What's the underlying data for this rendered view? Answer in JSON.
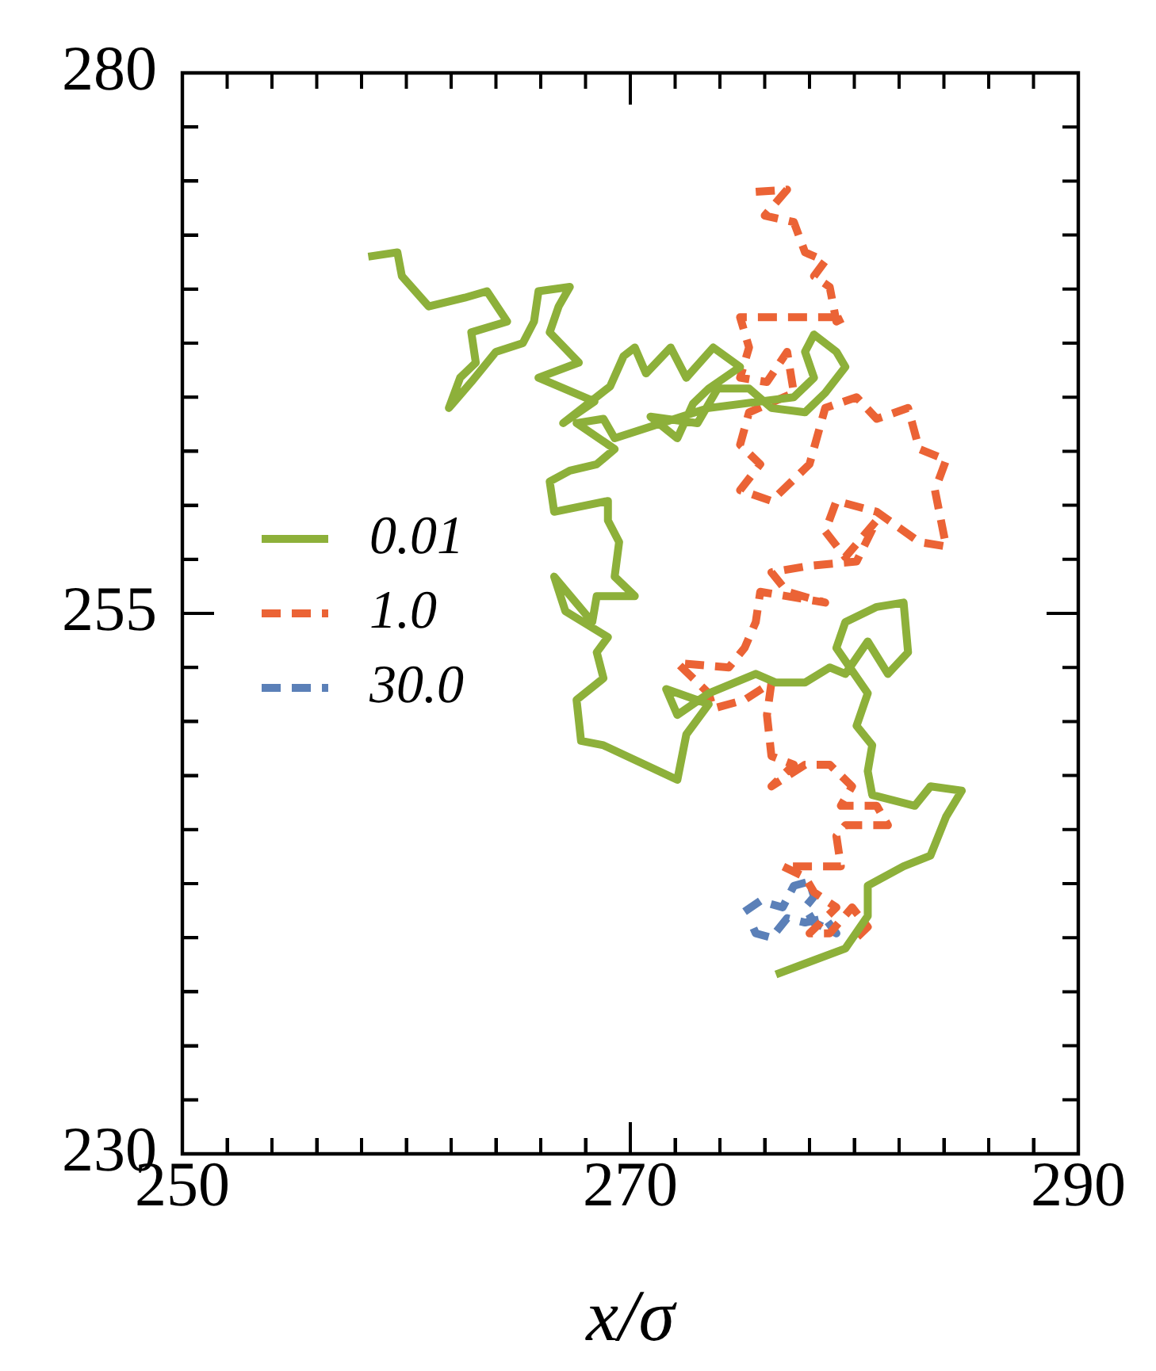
{
  "chart_data": {
    "type": "line",
    "xlabel": "x/σ",
    "xlim": [
      250,
      290
    ],
    "ylim": [
      230,
      280
    ],
    "xticks": [
      250,
      {
        "value": 252,
        "label": null
      },
      {
        "value": 254,
        "label": null
      },
      {
        "value": 256,
        "label": null
      },
      {
        "value": 258,
        "label": null
      },
      {
        "value": 260,
        "label": null
      },
      {
        "value": 262,
        "label": null
      },
      {
        "value": 264,
        "label": null
      },
      {
        "value": 266,
        "label": null
      },
      {
        "value": 268,
        "label": null
      },
      270,
      {
        "value": 272,
        "label": null
      },
      {
        "value": 274,
        "label": null
      },
      {
        "value": 276,
        "label": null
      },
      {
        "value": 278,
        "label": null
      },
      {
        "value": 280,
        "label": null
      },
      {
        "value": 282,
        "label": null
      },
      {
        "value": 284,
        "label": null
      },
      {
        "value": 286,
        "label": null
      },
      {
        "value": 288,
        "label": null
      },
      290
    ],
    "yticks": [
      230,
      {
        "value": 232.5,
        "label": null
      },
      {
        "value": 235,
        "label": null
      },
      {
        "value": 237.5,
        "label": null
      },
      {
        "value": 240,
        "label": null
      },
      {
        "value": 242.5,
        "label": null
      },
      {
        "value": 245,
        "label": null
      },
      {
        "value": 247.5,
        "label": null
      },
      {
        "value": 250,
        "label": null
      },
      {
        "value": 252.5,
        "label": null
      },
      255,
      {
        "value": 257.5,
        "label": null
      },
      {
        "value": 260,
        "label": null
      },
      {
        "value": 262.5,
        "label": null
      },
      {
        "value": 265,
        "label": null
      },
      {
        "value": 267.5,
        "label": null
      },
      {
        "value": 270,
        "label": null
      },
      {
        "value": 272.5,
        "label": null
      },
      {
        "value": 275,
        "label": null
      },
      {
        "value": 277.5,
        "label": null
      },
      280
    ],
    "legend": "left",
    "marker": "none",
    "series": [
      {
        "name": "0.01",
        "color": "#8db03a",
        "line_style": "solid",
        "x": [
          258.3,
          259.6,
          259.8,
          261.0,
          262.6,
          263.6,
          264.5,
          262.9,
          263.1,
          262.4,
          261.9,
          262.9,
          264.0,
          265.2,
          265.7,
          265.9,
          267.3,
          266.8,
          266.4,
          267.7,
          265.9,
          268.4,
          267.0,
          269.1,
          269.7,
          270.2,
          270.7,
          271.8,
          272.5,
          273.7,
          274.9,
          273.5,
          272.8,
          272.1,
          270.9,
          273.0,
          273.9,
          275.3,
          276.3,
          277.8,
          278.7,
          279.6,
          279.2,
          278.2,
          277.8,
          278.2,
          277.3,
          273.5,
          269.3,
          268.8,
          267.6,
          269.3,
          268.5,
          267.3,
          266.4,
          266.6,
          269.0,
          269.0,
          269.5,
          269.3,
          270.2,
          268.5,
          268.3,
          266.6,
          267.1,
          269.0,
          268.5,
          268.8,
          267.6,
          267.8,
          268.8,
          272.1,
          272.5,
          273.5,
          271.6,
          272.1,
          273.5,
          275.6,
          276.5,
          277.8,
          278.9,
          279.6,
          280.6,
          281.5,
          282.4,
          282.2,
          281.0,
          279.6,
          279.2,
          280.6,
          280.1,
          280.8,
          280.6,
          280.8,
          282.7,
          283.4,
          284.8,
          284.1,
          283.4,
          282.2,
          280.6,
          280.6,
          279.6,
          276.5
        ],
        "values": [
          271.5,
          271.7,
          270.6,
          269.2,
          269.6,
          269.9,
          268.5,
          268.0,
          266.6,
          265.9,
          264.5,
          265.7,
          267.1,
          267.5,
          268.5,
          269.9,
          270.1,
          269.2,
          268.0,
          266.6,
          265.9,
          264.8,
          263.8,
          265.5,
          266.9,
          267.3,
          266.1,
          267.3,
          265.9,
          267.3,
          266.4,
          265.4,
          264.7,
          263.1,
          264.1,
          263.8,
          265.4,
          265.4,
          264.5,
          264.3,
          265.2,
          266.4,
          267.1,
          267.9,
          267.1,
          265.9,
          265.0,
          264.5,
          263.1,
          264.0,
          263.8,
          262.6,
          261.9,
          261.6,
          261.1,
          259.7,
          260.2,
          259.3,
          258.3,
          256.7,
          255.8,
          255.8,
          254.6,
          256.7,
          255.1,
          253.9,
          253.2,
          252.0,
          251.0,
          249.1,
          248.9,
          247.3,
          249.4,
          250.8,
          251.5,
          250.3,
          251.3,
          252.2,
          251.8,
          251.8,
          252.5,
          252.2,
          253.7,
          252.2,
          253.2,
          255.5,
          255.3,
          254.6,
          253.4,
          251.3,
          249.8,
          248.9,
          247.7,
          246.6,
          246.1,
          247.0,
          246.8,
          245.6,
          243.8,
          243.3,
          242.4,
          241.0,
          239.5,
          238.3
        ]
      },
      {
        "name": "1.0",
        "color": "#eb6335",
        "line_style": "dashed",
        "x": [
          275.6,
          277.0,
          276.0,
          277.3,
          277.8,
          278.7,
          278.2,
          278.9,
          279.2,
          279.6,
          277.3,
          274.9,
          275.3,
          274.9,
          276.1,
          277.0,
          277.3,
          275.3,
          274.9,
          275.8,
          274.9,
          276.3,
          278.0,
          278.7,
          280.1,
          281.0,
          282.4,
          282.9,
          284.1,
          283.6,
          284.1,
          282.9,
          281.0,
          279.2,
          278.7,
          279.6,
          281.0,
          280.1,
          278.0,
          276.3,
          277.0,
          278.7,
          275.8,
          275.6,
          275.1,
          274.4,
          272.1,
          273.5,
          273.7,
          275.1,
          276.3,
          276.1,
          276.3,
          277.3,
          276.3,
          277.8,
          278.9,
          279.9,
          279.4,
          281.0,
          281.5,
          279.6,
          279.2,
          279.4,
          276.8,
          277.8,
          278.2,
          279.2,
          278.0,
          278.9,
          279.9,
          280.6,
          280.1
        ],
        "values": [
          274.5,
          274.6,
          273.4,
          273.1,
          271.7,
          271.3,
          270.6,
          270.1,
          268.5,
          268.7,
          268.7,
          268.7,
          267.3,
          265.9,
          265.7,
          267.1,
          265.2,
          264.3,
          262.8,
          261.9,
          260.7,
          260.2,
          261.9,
          264.5,
          265.0,
          264.0,
          264.5,
          262.6,
          262.1,
          260.7,
          258.1,
          258.3,
          259.7,
          260.2,
          258.8,
          257.6,
          259.3,
          257.4,
          257.2,
          256.9,
          256.0,
          255.5,
          256.0,
          254.6,
          253.4,
          252.5,
          252.7,
          251.3,
          250.6,
          251.0,
          251.8,
          250.3,
          248.4,
          248.0,
          247.0,
          248.0,
          248.0,
          247.0,
          246.1,
          246.1,
          245.2,
          245.2,
          244.7,
          243.3,
          243.3,
          242.8,
          242.1,
          241.4,
          240.2,
          240.2,
          241.4,
          240.5,
          240.0
        ]
      },
      {
        "name": "30.0",
        "color": "#5b80b8",
        "line_style": "dashed",
        "x": [
          275.1,
          275.8,
          276.8,
          277.3,
          278.0,
          278.2,
          277.8,
          278.2,
          279.2,
          278.7,
          277.8,
          277.0,
          276.3,
          275.6,
          275.3
        ],
        "values": [
          241.2,
          241.7,
          241.4,
          242.4,
          242.6,
          241.9,
          241.4,
          240.7,
          240.2,
          240.9,
          240.7,
          240.9,
          240.0,
          240.2,
          240.9
        ]
      }
    ]
  }
}
